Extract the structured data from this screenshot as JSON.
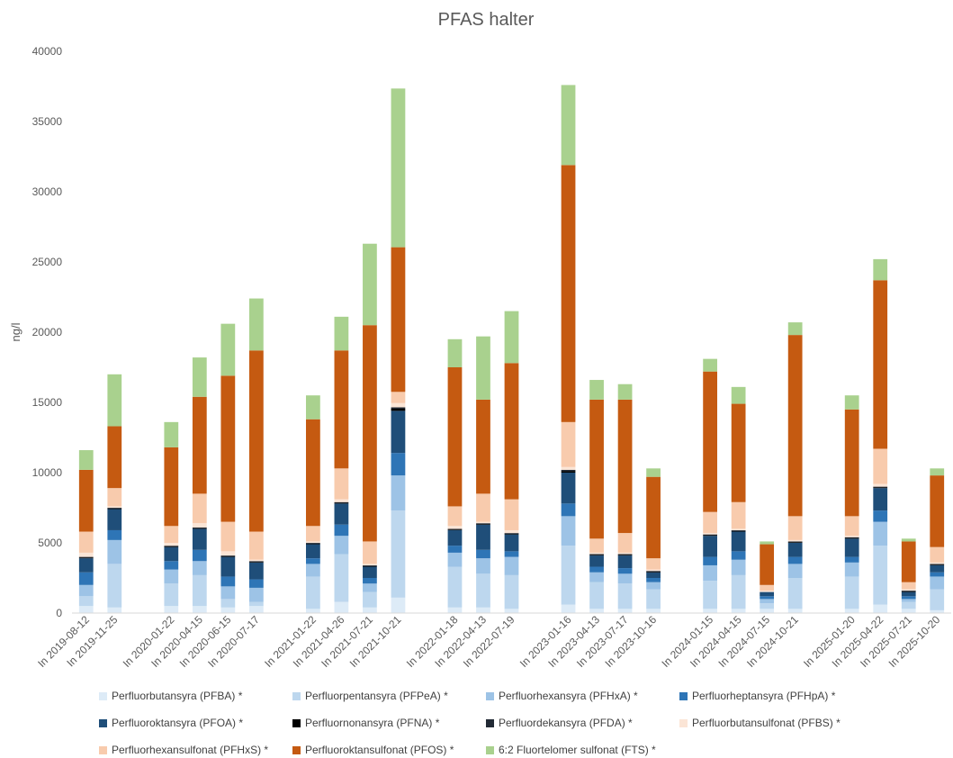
{
  "chart_data": {
    "type": "bar",
    "stacked": true,
    "title": "PFAS halter",
    "xlabel": "",
    "ylabel": "ng/l",
    "ylim": [
      0,
      40000
    ],
    "yticks": [
      "0",
      "5000",
      "10000",
      "15000",
      "20000",
      "25000",
      "30000",
      "35000",
      "40000"
    ],
    "grid": false,
    "legend_position": "bottom",
    "categories": [
      "In 2019-08-12",
      "In 2019-11-25",
      "",
      "In 2020-01-22",
      "In 2020-04-15",
      "In 2020-06-15",
      "In 2020-07-17",
      "",
      "In 2021-01-22",
      "In 2021-04-26",
      "In 2021-07-21",
      "In 2021-10-21",
      "",
      "In 2022-01-18",
      "In 2022-04-13",
      "In 2022-07-19",
      "",
      "In 2023-01-16",
      "In 2023-04-13",
      "In 2023-07-17",
      "In 2023-10-16",
      "",
      "In 2024-01-15",
      "In 2024-04-15",
      "In 2024-07-15",
      "In 2024-10-21",
      "",
      "In 2025-01-20",
      "In 2025-04-22",
      "In 2025-07-21",
      "In 2025-10-20"
    ],
    "series": [
      {
        "name": "Perfluorbutansyra (PFBA) *",
        "color": "#DDEBF7",
        "values": [
          500,
          400,
          0,
          500,
          500,
          400,
          500,
          0,
          300,
          800,
          400,
          1100,
          0,
          400,
          400,
          300,
          0,
          600,
          300,
          300,
          300,
          0,
          300,
          300,
          300,
          300,
          0,
          300,
          600,
          300,
          200
        ]
      },
      {
        "name": "Perfluorpentansyra (PFPeA) *",
        "color": "#BDD7EE",
        "values": [
          700,
          3100,
          0,
          1600,
          2200,
          600,
          300,
          0,
          2300,
          3400,
          1100,
          6200,
          0,
          2900,
          2400,
          2400,
          0,
          4200,
          1900,
          1800,
          1400,
          0,
          2000,
          2400,
          400,
          2200,
          0,
          2300,
          4200,
          500,
          1500
        ]
      },
      {
        "name": "Perfluorhexansyra (PFHxA) *",
        "color": "#9DC3E6",
        "values": [
          800,
          1700,
          0,
          1000,
          1000,
          900,
          1000,
          0,
          900,
          1300,
          600,
          2500,
          0,
          1000,
          1100,
          1300,
          0,
          2100,
          700,
          700,
          500,
          0,
          1100,
          1100,
          300,
          1000,
          0,
          1000,
          1700,
          200,
          900
        ]
      },
      {
        "name": "Perfluorheptansyra (PFHpA) *",
        "color": "#2E75B6",
        "values": [
          900,
          700,
          0,
          600,
          800,
          700,
          600,
          0,
          400,
          800,
          400,
          1600,
          0,
          500,
          600,
          400,
          0,
          900,
          400,
          400,
          300,
          0,
          600,
          600,
          200,
          500,
          0,
          400,
          800,
          200,
          300
        ]
      },
      {
        "name": "Perfluoroktansyra (PFOA) *",
        "color": "#1F4E79",
        "values": [
          1000,
          1500,
          0,
          1000,
          1500,
          1400,
          1200,
          0,
          1000,
          1500,
          800,
          3000,
          0,
          1100,
          1800,
          1200,
          0,
          2200,
          800,
          900,
          400,
          0,
          1500,
          1400,
          300,
          1000,
          0,
          1300,
          1600,
          300,
          500
        ]
      },
      {
        "name": "Perfluornonansyra (PFNA) *",
        "color": "#000000",
        "values": [
          50,
          50,
          0,
          50,
          50,
          50,
          50,
          0,
          50,
          50,
          50,
          150,
          0,
          50,
          50,
          50,
          0,
          100,
          50,
          50,
          50,
          0,
          50,
          50,
          0,
          50,
          0,
          50,
          50,
          50,
          50
        ]
      },
      {
        "name": "Perfluordekansyra (PFDA) *",
        "color": "#222A35",
        "values": [
          50,
          50,
          0,
          50,
          50,
          50,
          50,
          0,
          50,
          50,
          50,
          100,
          0,
          50,
          50,
          50,
          0,
          100,
          50,
          50,
          50,
          0,
          50,
          50,
          0,
          50,
          0,
          50,
          50,
          50,
          50
        ]
      },
      {
        "name": "Perfluorbutansulfonat (PFBS) *",
        "color": "#FBE5D6",
        "values": [
          300,
          100,
          0,
          200,
          300,
          300,
          100,
          0,
          100,
          200,
          100,
          300,
          0,
          200,
          100,
          200,
          0,
          200,
          100,
          100,
          100,
          0,
          100,
          100,
          100,
          100,
          0,
          100,
          200,
          100,
          100
        ]
      },
      {
        "name": "Perfluorhexansulfonat (PFHxS) *",
        "color": "#F8CBAD",
        "values": [
          1500,
          1300,
          0,
          1200,
          2100,
          2100,
          2000,
          0,
          1100,
          2200,
          1600,
          800,
          0,
          1400,
          2000,
          2200,
          0,
          3200,
          1000,
          1400,
          800,
          0,
          1500,
          1900,
          400,
          1700,
          0,
          1400,
          2500,
          500,
          1100
        ]
      },
      {
        "name": "Perfluoroktansulfonat (PFOS) *",
        "color": "#C55A11",
        "values": [
          4400,
          4400,
          0,
          5600,
          6900,
          10400,
          12900,
          0,
          7600,
          8400,
          15400,
          10300,
          0,
          9900,
          6700,
          9700,
          0,
          18300,
          9900,
          9500,
          5800,
          0,
          10000,
          7000,
          2900,
          12900,
          0,
          7600,
          12000,
          2900,
          5100
        ]
      },
      {
        "name": "6:2 Fluortelomer sulfonat (FTS) *",
        "color": "#A9D18E",
        "values": [
          1400,
          3700,
          0,
          1800,
          2800,
          3700,
          3700,
          0,
          1700,
          2400,
          5800,
          11300,
          0,
          2000,
          4500,
          3700,
          0,
          5700,
          1400,
          1100,
          600,
          0,
          900,
          1200,
          200,
          900,
          0,
          1000,
          1500,
          200,
          500
        ]
      }
    ]
  }
}
